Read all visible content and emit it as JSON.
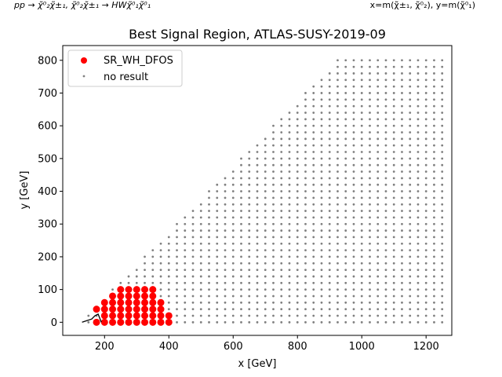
{
  "header": {
    "left": "pp → χ̃⁰₂χ̃±₁, χ̃⁰₂χ̃±₁ → HWχ̃⁰₁χ̃⁰₁",
    "right": "x=m(χ̃±₁, χ̃⁰₂), y=m(χ̃⁰₁)"
  },
  "chart_data": {
    "type": "scatter",
    "title": "Best Signal Region, ATLAS-SUSY-2019-09",
    "xlabel": "x [GeV]",
    "ylabel": "y [GeV]",
    "xlim": [
      70,
      1280
    ],
    "ylim": [
      -40,
      845
    ],
    "xticks": [
      200,
      400,
      600,
      800,
      1000,
      1200
    ],
    "yticks": [
      0,
      100,
      200,
      300,
      400,
      500,
      600,
      700,
      800
    ],
    "grid": false,
    "legend_position": "upper-left",
    "series": [
      {
        "name": "SR_WH_DFOS",
        "color": "#ff0000",
        "points": [
          [
            175,
            0
          ],
          [
            175,
            40
          ],
          [
            200,
            0
          ],
          [
            200,
            20
          ],
          [
            200,
            40
          ],
          [
            200,
            60
          ],
          [
            225,
            0
          ],
          [
            225,
            20
          ],
          [
            225,
            40
          ],
          [
            225,
            60
          ],
          [
            225,
            80
          ],
          [
            250,
            0
          ],
          [
            250,
            20
          ],
          [
            250,
            40
          ],
          [
            250,
            60
          ],
          [
            250,
            80
          ],
          [
            250,
            100
          ],
          [
            275,
            0
          ],
          [
            275,
            20
          ],
          [
            275,
            40
          ],
          [
            275,
            60
          ],
          [
            275,
            80
          ],
          [
            275,
            100
          ],
          [
            300,
            0
          ],
          [
            300,
            20
          ],
          [
            300,
            40
          ],
          [
            300,
            60
          ],
          [
            300,
            80
          ],
          [
            300,
            100
          ],
          [
            325,
            0
          ],
          [
            325,
            20
          ],
          [
            325,
            40
          ],
          [
            325,
            60
          ],
          [
            325,
            80
          ],
          [
            325,
            100
          ],
          [
            350,
            0
          ],
          [
            350,
            20
          ],
          [
            350,
            40
          ],
          [
            350,
            60
          ],
          [
            350,
            80
          ],
          [
            350,
            100
          ],
          [
            375,
            0
          ],
          [
            375,
            20
          ],
          [
            375,
            40
          ],
          [
            375,
            60
          ],
          [
            400,
            0
          ],
          [
            400,
            20
          ]
        ]
      },
      {
        "name": "no result",
        "color": "#808080",
        "grid_rule": "x from 150 to 1250 step 25; y from 0 to min(x-125, 800) step 20; excluding red points",
        "x_range": [
          150,
          1250
        ],
        "x_step": 25,
        "y_step": 20,
        "y_max": 800,
        "mass_gap": 125
      }
    ],
    "annotations": [
      {
        "type": "contour-line",
        "color": "#000000",
        "points": [
          [
            130,
            0
          ],
          [
            160,
            10
          ],
          [
            170,
            20
          ],
          [
            180,
            25
          ],
          [
            190,
            0
          ]
        ]
      }
    ]
  }
}
